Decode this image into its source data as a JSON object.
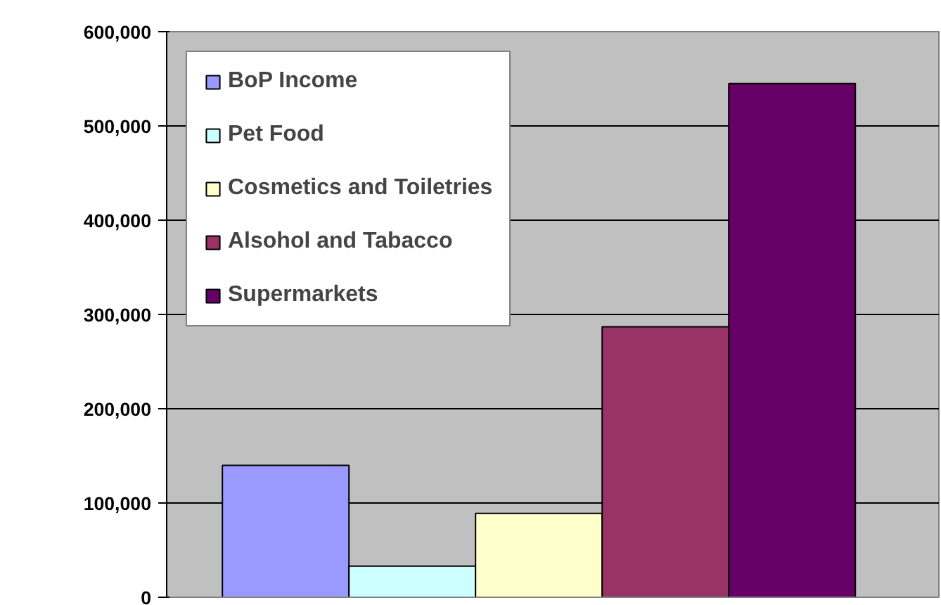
{
  "chart_data": {
    "type": "bar",
    "categories": [
      null
    ],
    "series": [
      {
        "name": "BoP Income",
        "color": "#9999ff",
        "values": [
          140000
        ]
      },
      {
        "name": "Pet Food",
        "color": "#ccffff",
        "values": [
          33000
        ]
      },
      {
        "name": "Cosmetics and Toiletries",
        "color": "#ffffcc",
        "values": [
          89000
        ]
      },
      {
        "name": "Alsohol and Tabacco",
        "color": "#993366",
        "values": [
          287000
        ]
      },
      {
        "name": "Supermarkets",
        "color": "#660066",
        "values": [
          545000
        ]
      }
    ],
    "ylim": [
      0,
      600000
    ],
    "yticks": [
      0,
      {
        "value": 100000,
        "label": "100,000"
      },
      {
        "value": 200000,
        "label": "200,000"
      },
      {
        "value": 300000,
        "label": "300,000"
      },
      {
        "value": 400000,
        "label": "400,000"
      },
      {
        "value": 500000,
        "label": "500,000"
      },
      {
        "value": 600000,
        "label": "600,000"
      }
    ],
    "grid": "y",
    "legend": "top left"
  }
}
